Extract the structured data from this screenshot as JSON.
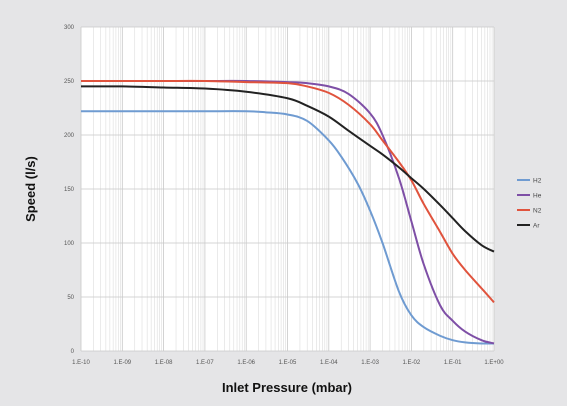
{
  "chart_data": {
    "type": "line",
    "xlabel": "Inlet Pressure (mbar)",
    "ylabel": "Speed (l/s)",
    "x_scale": "log",
    "xlim": [
      1e-10,
      1
    ],
    "ylim": [
      0,
      300
    ],
    "x_tick_labels": [
      "1.E-10",
      "1.E-09",
      "1.E-08",
      "1.E-07",
      "1.E-06",
      "1.E-05",
      "1.E-04",
      "1.E-03",
      "1.E-02",
      "1.E-01",
      "1.E+00"
    ],
    "y_tick_labels": [
      "0",
      "50",
      "100",
      "150",
      "200",
      "250",
      "300"
    ],
    "grid": true,
    "legend_position": "right",
    "series": [
      {
        "name": "H2",
        "color": "#6f9bd1",
        "x": [
          1e-10,
          1e-09,
          1e-08,
          1e-07,
          1e-06,
          3e-06,
          1e-05,
          3e-05,
          0.0001,
          0.0002,
          0.0005,
          0.001,
          0.002,
          0.005,
          0.01,
          0.02,
          0.05,
          0.1,
          0.2,
          0.5,
          1
        ],
        "y": [
          222,
          222,
          222,
          222,
          222,
          221,
          219,
          213,
          195,
          180,
          155,
          130,
          100,
          55,
          33,
          22,
          14,
          10,
          8,
          7,
          7
        ]
      },
      {
        "name": "He",
        "color": "#7e4fa6",
        "x": [
          1e-10,
          1e-09,
          1e-08,
          1e-07,
          1e-06,
          1e-05,
          3e-05,
          0.0001,
          0.0003,
          0.001,
          0.002,
          0.005,
          0.01,
          0.02,
          0.05,
          0.1,
          0.2,
          0.5,
          1
        ],
        "y": [
          250,
          250,
          250,
          250,
          250,
          249,
          248,
          245,
          238,
          220,
          200,
          160,
          120,
          80,
          42,
          28,
          18,
          10,
          7
        ]
      },
      {
        "name": "N2",
        "color": "#e0533d",
        "x": [
          1e-10,
          1e-09,
          1e-08,
          1e-07,
          1e-06,
          1e-05,
          3e-05,
          0.0001,
          0.0003,
          0.001,
          0.002,
          0.005,
          0.01,
          0.02,
          0.05,
          0.1,
          0.2,
          0.5,
          1
        ],
        "y": [
          250,
          250,
          250,
          250,
          249,
          248,
          245,
          239,
          228,
          210,
          195,
          175,
          158,
          136,
          110,
          90,
          75,
          58,
          45
        ]
      },
      {
        "name": "Ar",
        "color": "#222222",
        "x": [
          1e-10,
          1e-09,
          1e-08,
          1e-07,
          1e-06,
          1e-05,
          3e-05,
          0.0001,
          0.0003,
          0.001,
          0.002,
          0.005,
          0.01,
          0.02,
          0.05,
          0.1,
          0.2,
          0.5,
          1
        ],
        "y": [
          245,
          245,
          244,
          243,
          240,
          234,
          227,
          217,
          204,
          190,
          182,
          170,
          160,
          150,
          135,
          123,
          111,
          98,
          92
        ]
      }
    ]
  }
}
